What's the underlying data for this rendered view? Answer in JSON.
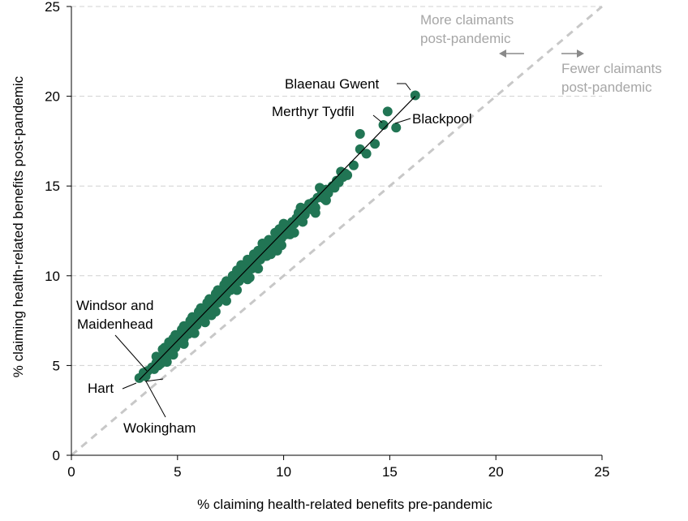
{
  "chart_data": {
    "type": "scatter",
    "xlabel": "% claiming health-related benefits pre-pandemic",
    "ylabel": "% claiming health-related benefits post-pandemic",
    "xlim": [
      0,
      25
    ],
    "ylim": [
      0,
      25
    ],
    "xticks": [
      "0",
      "5",
      "10",
      "15",
      "20",
      "25"
    ],
    "yticks": [
      "0",
      "5",
      "10",
      "15",
      "20",
      "25"
    ],
    "grid": "horizontal dashed",
    "point_color": "#217554",
    "reference_line": {
      "style": "dashed",
      "color": "#c8c8c8",
      "from": [
        0,
        0
      ],
      "to": [
        25,
        25
      ]
    },
    "trend_line": {
      "color": "#000000",
      "from": [
        3.2,
        4.2
      ],
      "to": [
        16.2,
        20.0
      ]
    },
    "region_labels": {
      "above": {
        "line1": "More claimants",
        "line2": "post-pandemic",
        "arrow": "left"
      },
      "below": {
        "line1": "Fewer claimants",
        "line2": "post-pandemic",
        "arrow": "right"
      }
    },
    "annotations": [
      {
        "label": "Blaenau Gwent",
        "x": 16.2,
        "y": 20.05
      },
      {
        "label": "Merthyr Tydfil",
        "x": 14.7,
        "y": 18.4
      },
      {
        "label": "Blackpool",
        "x": 15.3,
        "y": 18.25
      },
      {
        "label": "Windsor and",
        "label2": "Maidenhead",
        "x": 3.4,
        "y": 4.6
      },
      {
        "label": "Hart",
        "x": 3.2,
        "y": 4.3
      },
      {
        "label": "Wokingham",
        "x": 3.5,
        "y": 4.4
      }
    ],
    "points": [
      [
        16.2,
        20.05
      ],
      [
        14.9,
        19.15
      ],
      [
        15.3,
        18.25
      ],
      [
        14.7,
        18.4
      ],
      [
        13.6,
        17.9
      ],
      [
        14.3,
        17.35
      ],
      [
        13.6,
        17.05
      ],
      [
        13.9,
        16.8
      ],
      [
        13.3,
        16.15
      ],
      [
        12.9,
        15.7
      ],
      [
        12.8,
        15.5
      ],
      [
        12.5,
        15.3
      ],
      [
        12.3,
        15.0
      ],
      [
        12.0,
        14.8
      ],
      [
        11.8,
        14.55
      ],
      [
        11.6,
        14.35
      ],
      [
        11.4,
        14.1
      ],
      [
        11.1,
        13.8
      ],
      [
        10.9,
        13.55
      ],
      [
        10.6,
        13.2
      ],
      [
        10.4,
        13.0
      ],
      [
        10.2,
        12.8
      ],
      [
        10.0,
        12.5
      ],
      [
        9.8,
        12.3
      ],
      [
        9.6,
        12.05
      ],
      [
        9.4,
        11.8
      ],
      [
        9.2,
        11.6
      ],
      [
        9.0,
        11.35
      ],
      [
        8.8,
        11.1
      ],
      [
        8.6,
        10.85
      ],
      [
        8.4,
        10.6
      ],
      [
        8.2,
        10.35
      ],
      [
        8.0,
        10.1
      ],
      [
        7.8,
        9.9
      ],
      [
        7.6,
        9.65
      ],
      [
        7.4,
        9.4
      ],
      [
        7.2,
        9.15
      ],
      [
        7.0,
        8.9
      ],
      [
        6.8,
        8.65
      ],
      [
        6.6,
        8.4
      ],
      [
        6.4,
        8.15
      ],
      [
        6.2,
        7.9
      ],
      [
        6.0,
        7.65
      ],
      [
        5.8,
        7.4
      ],
      [
        5.6,
        7.15
      ],
      [
        5.4,
        6.9
      ],
      [
        5.2,
        6.65
      ],
      [
        5.0,
        6.4
      ],
      [
        4.8,
        6.15
      ],
      [
        4.6,
        5.9
      ],
      [
        4.4,
        5.65
      ],
      [
        4.2,
        5.4
      ],
      [
        4.0,
        5.15
      ],
      [
        3.8,
        4.9
      ],
      [
        3.6,
        4.7
      ],
      [
        3.4,
        4.6
      ],
      [
        3.5,
        4.4
      ],
      [
        3.2,
        4.3
      ],
      [
        12.6,
        15.2
      ],
      [
        12.4,
        14.9
      ],
      [
        12.1,
        14.6
      ],
      [
        11.9,
        14.3
      ],
      [
        11.3,
        13.7
      ],
      [
        11.0,
        13.4
      ],
      [
        10.8,
        13.1
      ],
      [
        10.5,
        12.9
      ],
      [
        10.3,
        12.6
      ],
      [
        10.1,
        12.3
      ],
      [
        9.9,
        12.1
      ],
      [
        9.7,
        11.9
      ],
      [
        9.5,
        11.6
      ],
      [
        9.3,
        11.4
      ],
      [
        9.1,
        11.1
      ],
      [
        8.9,
        10.9
      ],
      [
        8.7,
        10.7
      ],
      [
        8.5,
        10.4
      ],
      [
        8.3,
        10.2
      ],
      [
        8.1,
        9.95
      ],
      [
        7.9,
        9.7
      ],
      [
        7.7,
        9.5
      ],
      [
        7.5,
        9.2
      ],
      [
        7.3,
        9.0
      ],
      [
        7.1,
        8.75
      ],
      [
        6.9,
        8.5
      ],
      [
        6.7,
        8.25
      ],
      [
        6.5,
        8.0
      ],
      [
        6.3,
        7.75
      ],
      [
        6.1,
        7.5
      ],
      [
        5.9,
        7.25
      ],
      [
        5.7,
        7.0
      ],
      [
        5.5,
        6.75
      ],
      [
        5.3,
        6.5
      ],
      [
        5.1,
        6.25
      ],
      [
        4.9,
        6.0
      ],
      [
        4.7,
        5.75
      ],
      [
        4.5,
        5.5
      ],
      [
        4.3,
        5.25
      ],
      [
        4.1,
        5.0
      ],
      [
        3.9,
        4.8
      ],
      [
        11.2,
        14.0
      ],
      [
        10.7,
        13.5
      ],
      [
        10.0,
        12.9
      ],
      [
        9.6,
        12.4
      ],
      [
        9.0,
        11.8
      ],
      [
        8.6,
        11.2
      ],
      [
        8.0,
        10.6
      ],
      [
        7.6,
        10.0
      ],
      [
        7.2,
        9.5
      ],
      [
        6.8,
        9.0
      ],
      [
        6.4,
        8.5
      ],
      [
        6.0,
        8.0
      ],
      [
        5.6,
        7.5
      ],
      [
        5.2,
        7.0
      ],
      [
        4.8,
        6.5
      ],
      [
        4.4,
        6.0
      ],
      [
        4.0,
        5.5
      ],
      [
        11.5,
        13.8
      ],
      [
        10.9,
        13.0
      ],
      [
        10.3,
        12.3
      ],
      [
        9.8,
        11.8
      ],
      [
        9.2,
        11.1
      ],
      [
        8.7,
        10.5
      ],
      [
        8.2,
        9.9
      ],
      [
        7.7,
        9.3
      ],
      [
        7.2,
        8.7
      ],
      [
        6.7,
        8.1
      ],
      [
        6.2,
        7.5
      ],
      [
        5.7,
        6.9
      ],
      [
        5.2,
        6.3
      ],
      [
        4.7,
        5.7
      ],
      [
        4.2,
        5.1
      ],
      [
        12.0,
        14.2
      ],
      [
        11.5,
        13.5
      ],
      [
        10.5,
        12.4
      ],
      [
        9.9,
        11.7
      ],
      [
        9.4,
        11.2
      ],
      [
        8.8,
        10.4
      ],
      [
        8.3,
        9.8
      ],
      [
        7.8,
        9.2
      ],
      [
        7.3,
        8.6
      ],
      [
        6.8,
        8.0
      ],
      [
        6.3,
        7.4
      ],
      [
        5.8,
        6.8
      ],
      [
        5.3,
        6.2
      ],
      [
        4.8,
        5.6
      ],
      [
        4.5,
        5.2
      ],
      [
        9.7,
        11.4
      ],
      [
        8.4,
        9.9
      ],
      [
        6.6,
        7.8
      ],
      [
        13.0,
        15.6
      ],
      [
        12.7,
        15.8
      ],
      [
        11.7,
        14.9
      ],
      [
        10.8,
        13.8
      ],
      [
        9.8,
        12.6
      ],
      [
        9.3,
        12.0
      ],
      [
        8.8,
        11.4
      ],
      [
        8.3,
        10.9
      ],
      [
        7.8,
        10.3
      ],
      [
        7.3,
        9.7
      ],
      [
        6.9,
        9.2
      ],
      [
        6.5,
        8.7
      ],
      [
        6.1,
        8.2
      ],
      [
        5.7,
        7.7
      ],
      [
        5.3,
        7.2
      ],
      [
        4.9,
        6.7
      ],
      [
        4.6,
        6.3
      ],
      [
        4.3,
        5.9
      ]
    ]
  }
}
